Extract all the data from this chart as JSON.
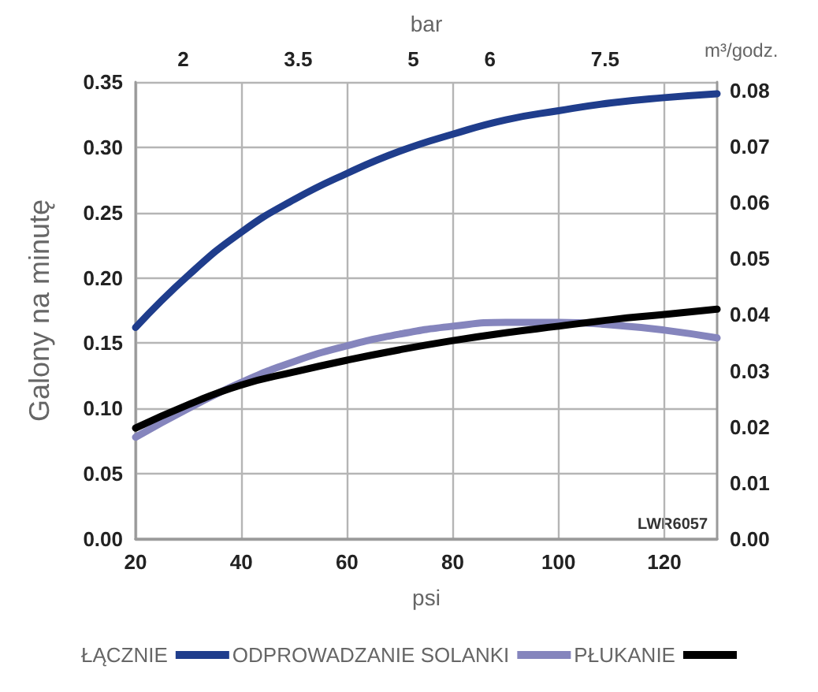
{
  "chart_data": {
    "type": "line",
    "xlabel": "psi",
    "ylabel": "Galony na minutę",
    "y2label": "m³/godz.",
    "x2label": "bar",
    "x": [
      20,
      30,
      40,
      50,
      60,
      70,
      80,
      90,
      100,
      110,
      120,
      130
    ],
    "series": [
      {
        "name": "ŁĄCZNIE",
        "color": "#1f3d8c",
        "values": [
          0.162,
          0.202,
          0.235,
          0.26,
          0.28,
          0.297,
          0.31,
          0.321,
          0.328,
          0.334,
          0.338,
          0.341
        ]
      },
      {
        "name": "ODPROWADZANIE SOLANKI",
        "color": "#8585bd",
        "values": [
          0.078,
          0.1,
          0.12,
          0.136,
          0.148,
          0.157,
          0.163,
          0.166,
          0.166,
          0.164,
          0.16,
          0.154
        ]
      },
      {
        "name": "PŁUKANIE",
        "color": "#000000",
        "values": [
          0.085,
          0.103,
          0.118,
          0.128,
          0.137,
          0.145,
          0.152,
          0.158,
          0.163,
          0.168,
          0.172,
          0.176
        ]
      }
    ],
    "xlim": [
      20,
      130
    ],
    "xticks": [
      20,
      40,
      60,
      80,
      100,
      120
    ],
    "x2lim": [
      1.38,
      8.96
    ],
    "x2ticks": [
      2,
      3.5,
      5,
      6,
      7.5
    ],
    "ylim": [
      0,
      0.35
    ],
    "yticks": [
      {
        "value": 0,
        "label": "0.00"
      },
      {
        "value": 0.05,
        "label": "0.05"
      },
      {
        "value": 0.1,
        "label": "0.10"
      },
      {
        "value": 0.15,
        "label": "0.15"
      },
      {
        "value": 0.2,
        "label": "0.20"
      },
      {
        "value": 0.25,
        "label": "0.25"
      },
      {
        "value": 0.3,
        "label": "0.30"
      },
      {
        "value": 0.35,
        "label": "0.35"
      }
    ],
    "y2lim": [
      0,
      0.0815
    ],
    "y2ticks": [
      {
        "value": 0,
        "label": "0.00"
      },
      {
        "value": 0.01,
        "label": "0.01"
      },
      {
        "value": 0.02,
        "label": "0.02"
      },
      {
        "value": 0.03,
        "label": "0.03"
      },
      {
        "value": 0.04,
        "label": "0.04"
      },
      {
        "value": 0.05,
        "label": "0.05"
      },
      {
        "value": 0.06,
        "label": "0.06"
      },
      {
        "value": 0.07,
        "label": "0.07"
      },
      {
        "value": 0.08,
        "label": "0.08"
      }
    ],
    "annotations": [
      "LWR6057"
    ],
    "grid": true,
    "legend": "bottom",
    "marker": "none",
    "line_style": "solid"
  }
}
